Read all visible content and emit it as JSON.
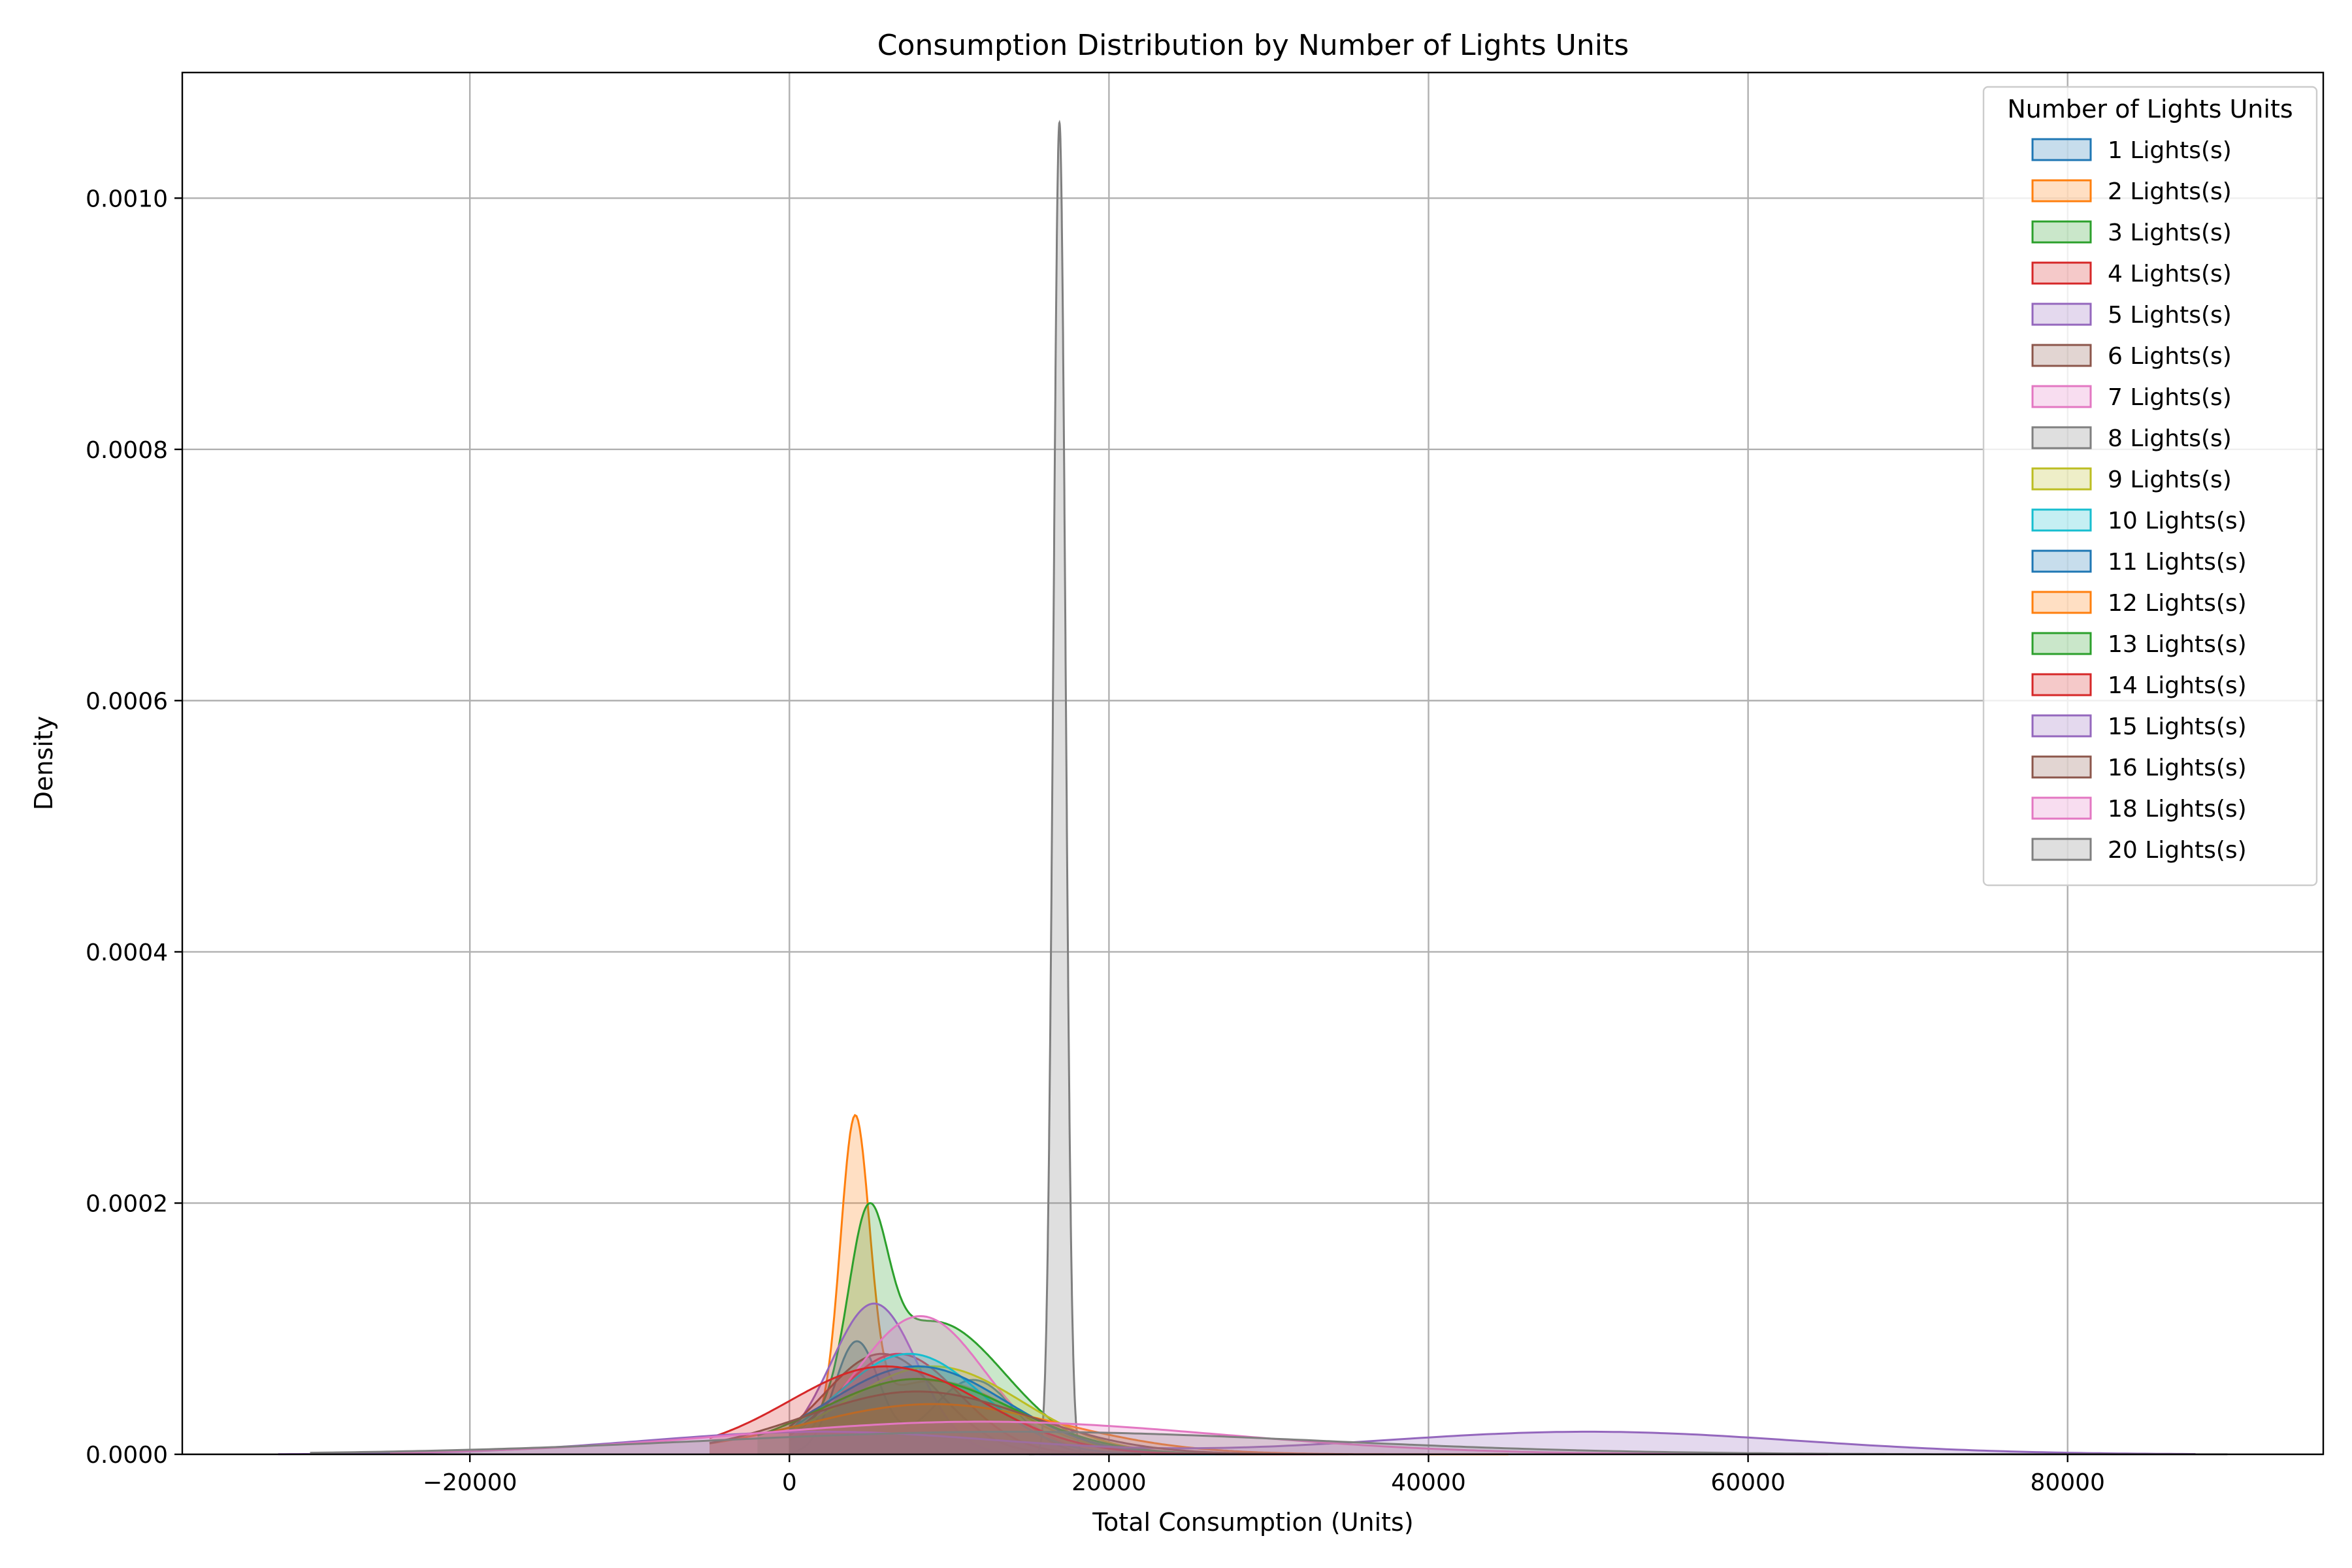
{
  "chart_data": {
    "type": "area",
    "title": "Consumption Distribution by Number of Lights Units",
    "xlabel": "Total Consumption (Units)",
    "ylabel": "Density",
    "xlim": [
      -38000,
      96000
    ],
    "ylim": [
      0,
      0.0011
    ],
    "xticks": [
      -20000,
      0,
      20000,
      40000,
      60000,
      80000
    ],
    "xtick_labels": [
      "−20000",
      "0",
      "20000",
      "40000",
      "60000",
      "80000"
    ],
    "yticks": [
      0,
      0.0002,
      0.0004,
      0.0006,
      0.0008,
      0.001
    ],
    "ytick_labels": [
      "0.0000",
      "0.0002",
      "0.0004",
      "0.0006",
      "0.0008",
      "0.0010"
    ],
    "grid": true,
    "legend_title": "Number of Lights Units",
    "legend_position": "top-right",
    "series": [
      {
        "name": "1 Lights(s)",
        "color": "#1f77b4",
        "components": [
          [
            0.6,
            4200,
            1400
          ],
          [
            0.4,
            11500,
            2600
          ]
        ],
        "x_range": [
          0,
          20000
        ]
      },
      {
        "name": "2 Lights(s)",
        "color": "#ff7f0e",
        "components": [
          [
            0.8,
            4100,
            900
          ],
          [
            0.2,
            9000,
            5000
          ]
        ],
        "x_range": [
          0,
          30000
        ]
      },
      {
        "name": "3 Lights(s)",
        "color": "#2ca02c",
        "components": [
          [
            0.55,
            4900,
            1200
          ],
          [
            0.45,
            9000,
            4500
          ]
        ],
        "x_range": [
          0,
          25000
        ]
      },
      {
        "name": "4 Lights(s)",
        "color": "#d62728",
        "components": [
          [
            1.0,
            6800,
            3800
          ]
        ],
        "x_range": [
          0,
          22000
        ]
      },
      {
        "name": "5 Lights(s)",
        "color": "#9467bd",
        "components": [
          [
            1.0,
            5300,
            2700
          ]
        ],
        "x_range": [
          0,
          22000
        ]
      },
      {
        "name": "6 Lights(s)",
        "color": "#8c564b",
        "components": [
          [
            1.0,
            5800,
            3600
          ]
        ],
        "x_range": [
          0,
          22000
        ]
      },
      {
        "name": "7 Lights(s)",
        "color": "#e377c2",
        "components": [
          [
            1.0,
            8200,
            4000
          ]
        ],
        "x_range": [
          0,
          26000
        ]
      },
      {
        "name": "8 Lights(s)",
        "color": "#7f7f7f",
        "components": [
          [
            1.0,
            16900,
            380
          ]
        ],
        "x_range": [
          15000,
          18500
        ]
      },
      {
        "name": "9 Lights(s)",
        "color": "#bcbd22",
        "components": [
          [
            1.0,
            9000,
            5500
          ]
        ],
        "x_range": [
          0,
          30000
        ]
      },
      {
        "name": "10 Lights(s)",
        "color": "#17becf",
        "components": [
          [
            1.0,
            7500,
            4500
          ]
        ],
        "x_range": [
          0,
          28000
        ]
      },
      {
        "name": "11 Lights(s)",
        "color": "#1f77b4",
        "components": [
          [
            1.0,
            8000,
            5500
          ]
        ],
        "x_range": [
          0,
          32000
        ]
      },
      {
        "name": "12 Lights(s)",
        "color": "#ff7f0e",
        "components": [
          [
            1.0,
            9000,
            8000
          ]
        ],
        "x_range": [
          -5000,
          45000
        ]
      },
      {
        "name": "13 Lights(s)",
        "color": "#2ca02c",
        "components": [
          [
            1.0,
            8000,
            6000
          ]
        ],
        "x_range": [
          -2000,
          32000
        ]
      },
      {
        "name": "14 Lights(s)",
        "color": "#d62728",
        "components": [
          [
            1.0,
            6000,
            6000
          ]
        ],
        "x_range": [
          -5000,
          35000
        ]
      },
      {
        "name": "15 Lights(s)",
        "color": "#9467bd",
        "components": [
          [
            0.5,
            2000,
            11000
          ],
          [
            0.5,
            50000,
            13000
          ]
        ],
        "x_range": [
          -32000,
          88000
        ]
      },
      {
        "name": "16 Lights(s)",
        "color": "#8c564b",
        "components": [
          [
            1.0,
            8000,
            7000
          ]
        ],
        "x_range": [
          -5000,
          40000
        ]
      },
      {
        "name": "18 Lights(s)",
        "color": "#e377c2",
        "components": [
          [
            1.0,
            12000,
            15000
          ]
        ],
        "x_range": [
          -25000,
          65000
        ]
      },
      {
        "name": "20 Lights(s)",
        "color": "#7f7f7f",
        "components": [
          [
            1.0,
            14000,
            19000
          ]
        ],
        "x_range": [
          -30000,
          90000
        ]
      }
    ],
    "peak_density": [
      9e-05,
      0.00027,
      0.0002,
      8e-05,
      0.00012,
      8e-05,
      0.00011,
      0.00106,
      7e-05,
      8e-05,
      7e-05,
      4e-05,
      6e-05,
      7e-05,
      1.8e-05,
      5e-05,
      2.6e-05,
      1.8e-05
    ]
  }
}
